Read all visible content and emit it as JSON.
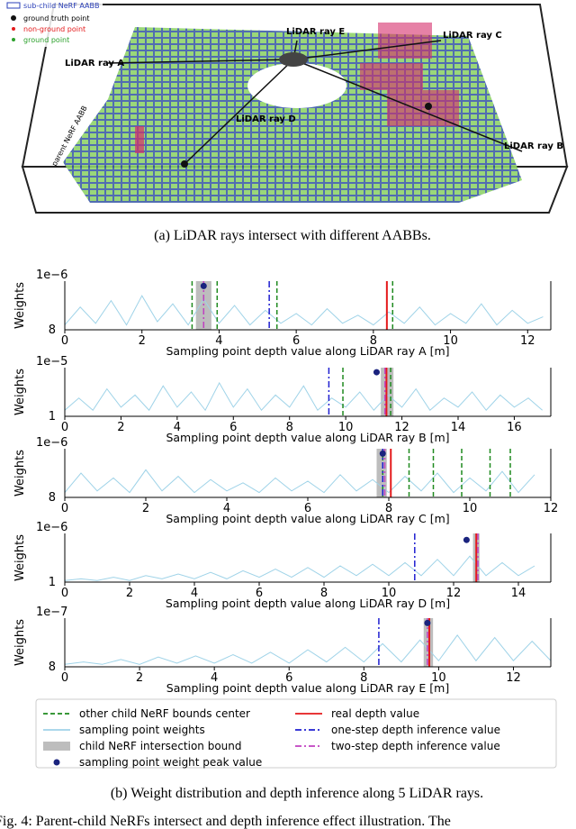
{
  "illustration": {
    "legend": [
      "sub-child NeRF AABB",
      "ground truth point",
      "non-ground point",
      "ground point"
    ],
    "ray_labels": [
      "LiDAR ray A",
      "LiDAR ray B",
      "LiDAR ray C",
      "LiDAR ray D",
      "LiDAR ray E"
    ],
    "parent_label": "parent NeRF AABB",
    "caption": "(a) LiDAR rays intersect with different AABBs."
  },
  "chart_data": [
    {
      "type": "line",
      "offset_label": "1e−6",
      "y_corner_label": "8",
      "ylabel": "Weights",
      "xlabel": "Sampling point depth value along LiDAR ray A [m]",
      "xlim": [
        0,
        12.6
      ],
      "xticks": [
        0,
        2,
        4,
        6,
        8,
        10,
        12
      ],
      "ylim": [
        0,
        3
      ],
      "x": [
        0,
        0.4,
        0.8,
        1.2,
        1.6,
        2,
        2.4,
        2.8,
        3.2,
        3.6,
        4,
        4.4,
        4.8,
        5.2,
        5.6,
        6,
        6.4,
        6.8,
        7.2,
        7.6,
        8,
        8.4,
        8.8,
        9.2,
        9.6,
        10,
        10.4,
        10.8,
        11.2,
        11.6,
        12,
        12.4
      ],
      "series": [
        {
          "color": "#9fd3e8",
          "values": [
            0.3,
            1.4,
            0.4,
            1.8,
            0.3,
            2.1,
            0.5,
            1.6,
            0.3,
            1.9,
            0.4,
            1.5,
            0.3,
            1.2,
            0.4,
            1.0,
            0.3,
            1.3,
            0.4,
            0.9,
            0.3,
            1.1,
            0.4,
            1.4,
            0.3,
            1.0,
            0.4,
            1.6,
            0.3,
            1.2,
            0.4,
            0.8
          ]
        }
      ],
      "bound": [
        3.4,
        3.8
      ],
      "centers": [
        3.3,
        3.95,
        5.5,
        8.5
      ],
      "real_depth": 8.35,
      "one_step": 5.3,
      "two_step": 3.6,
      "peak": [
        3.6,
        2.7
      ]
    },
    {
      "type": "line",
      "offset_label": "1e−5",
      "y_corner_label": "1",
      "ylabel": "Weights",
      "xlabel": "Sampling point depth value along LiDAR ray B [m]",
      "xlim": [
        0,
        17.3
      ],
      "xticks": [
        0,
        2,
        4,
        6,
        8,
        10,
        12,
        14,
        16
      ],
      "ylim": [
        0,
        1.6
      ],
      "x": [
        0,
        0.5,
        1,
        1.5,
        2,
        2.5,
        3,
        3.5,
        4,
        4.5,
        5,
        5.5,
        6,
        6.5,
        7,
        7.5,
        8,
        8.5,
        9,
        9.5,
        10,
        10.5,
        11,
        11.5,
        12,
        12.5,
        13,
        13.5,
        14,
        14.5,
        15,
        15.5,
        16,
        16.5,
        17
      ],
      "series": [
        {
          "color": "#9fd3e8",
          "values": [
            0.2,
            0.6,
            0.2,
            0.9,
            0.3,
            0.7,
            0.2,
            1.0,
            0.3,
            0.8,
            0.2,
            1.1,
            0.3,
            0.9,
            0.2,
            0.7,
            0.3,
            1.0,
            0.2,
            0.6,
            0.3,
            0.8,
            0.2,
            0.7,
            0.3,
            0.9,
            0.2,
            0.6,
            0.3,
            0.8,
            0.2,
            0.7,
            0.3,
            0.6,
            0.2
          ]
        }
      ],
      "bound": [
        11.25,
        11.7
      ],
      "centers": [
        9.9,
        11.6
      ],
      "real_depth": 11.45,
      "one_step": 9.4,
      "two_step": 11.4,
      "peak": [
        11.1,
        1.45
      ]
    },
    {
      "type": "line",
      "offset_label": "1e−6",
      "y_corner_label": "8",
      "ylabel": "Weights",
      "xlabel": "Sampling point depth value along LiDAR ray C [m]",
      "xlim": [
        0,
        12
      ],
      "xticks": [
        0,
        2,
        4,
        6,
        8,
        10,
        12
      ],
      "ylim": [
        0,
        3
      ],
      "x": [
        0,
        0.4,
        0.8,
        1.2,
        1.6,
        2,
        2.4,
        2.8,
        3.2,
        3.6,
        4,
        4.4,
        4.8,
        5.2,
        5.6,
        6,
        6.4,
        6.8,
        7.2,
        7.6,
        8,
        8.4,
        8.8,
        9.2,
        9.6,
        10,
        10.4,
        10.8,
        11.2,
        11.6
      ],
      "series": [
        {
          "color": "#9fd3e8",
          "values": [
            0.3,
            1.5,
            0.4,
            1.2,
            0.3,
            1.7,
            0.4,
            1.3,
            0.3,
            1.1,
            0.4,
            0.9,
            0.3,
            1.2,
            0.4,
            1.0,
            0.3,
            1.4,
            0.4,
            1.1,
            0.3,
            1.3,
            0.4,
            1.5,
            0.3,
            1.2,
            0.4,
            1.6,
            0.3,
            1.4
          ]
        }
      ],
      "bound": [
        7.7,
        7.95
      ],
      "centers": [
        7.85,
        8.5,
        9.1,
        9.8,
        10.5,
        11.0
      ],
      "real_depth": 8.05,
      "one_step": 7.85,
      "two_step": 7.9,
      "peak": [
        7.85,
        2.7
      ]
    },
    {
      "type": "line",
      "offset_label": "1e−6",
      "y_corner_label": "1",
      "ylabel": "Weights",
      "xlabel": "Sampling point depth value along LiDAR ray D [m]",
      "xlim": [
        0,
        15
      ],
      "xticks": [
        0,
        2,
        4,
        6,
        8,
        10,
        12,
        14
      ],
      "ylim": [
        0,
        1.5
      ],
      "x": [
        0,
        0.5,
        1,
        1.5,
        2,
        2.5,
        3,
        3.5,
        4,
        4.5,
        5,
        5.5,
        6,
        6.5,
        7,
        7.5,
        8,
        8.5,
        9,
        9.5,
        10,
        10.5,
        11,
        11.5,
        12,
        12.5,
        13,
        13.5,
        14,
        14.5
      ],
      "series": [
        {
          "color": "#9fd3e8",
          "values": [
            0.05,
            0.1,
            0.05,
            0.15,
            0.05,
            0.2,
            0.1,
            0.25,
            0.1,
            0.3,
            0.1,
            0.35,
            0.15,
            0.4,
            0.15,
            0.45,
            0.15,
            0.5,
            0.2,
            0.55,
            0.2,
            0.6,
            0.2,
            0.7,
            0.2,
            0.8,
            0.2,
            0.6,
            0.2,
            0.5
          ]
        }
      ],
      "bound": [
        12.6,
        12.8
      ],
      "centers": [],
      "real_depth": 12.7,
      "one_step": 10.8,
      "two_step": 12.75,
      "peak": [
        12.4,
        1.3
      ]
    },
    {
      "type": "line",
      "offset_label": "1e−7",
      "y_corner_label": "8",
      "ylabel": "Weights",
      "xlabel": "Sampling point depth value along LiDAR ray E [m]",
      "xlim": [
        0,
        13
      ],
      "xticks": [
        0,
        2,
        4,
        6,
        8,
        10,
        12
      ],
      "ylim": [
        0,
        4
      ],
      "x": [
        0,
        0.5,
        1,
        1.5,
        2,
        2.5,
        3,
        3.5,
        4,
        4.5,
        5,
        5.5,
        6,
        6.5,
        7,
        7.5,
        8,
        8.5,
        9,
        9.5,
        10,
        10.5,
        11,
        11.5,
        12,
        12.5,
        13
      ],
      "series": [
        {
          "color": "#9fd3e8",
          "values": [
            0.2,
            0.4,
            0.2,
            0.6,
            0.2,
            0.8,
            0.3,
            0.9,
            0.3,
            1.0,
            0.3,
            1.2,
            0.3,
            1.4,
            0.4,
            1.6,
            0.4,
            1.9,
            0.4,
            2.2,
            0.5,
            2.6,
            0.5,
            2.4,
            0.5,
            2.1,
            0.5
          ]
        }
      ],
      "bound": [
        9.6,
        9.85
      ],
      "centers": [],
      "real_depth": 9.75,
      "one_step": 8.4,
      "two_step": 9.7,
      "peak": [
        9.7,
        3.6
      ]
    }
  ],
  "legend": [
    {
      "label": "other child NeRF bounds  center",
      "color": "#1f8a1f",
      "style": "dashed"
    },
    {
      "label": "sampling point weights",
      "color": "#9fd3e8",
      "style": "solid"
    },
    {
      "label": "child NeRF intersection bound",
      "color": "#bdbdbd",
      "style": "band"
    },
    {
      "label": "sampling point weight peak value",
      "color": "#1a237e",
      "style": "dot"
    },
    {
      "label": "real depth value",
      "color": "#e41a1c",
      "style": "solid"
    },
    {
      "label": "one-step depth inference value",
      "color": "#1f1fd0",
      "style": "dashdot"
    },
    {
      "label": "two-step depth inference value",
      "color": "#c040c0",
      "style": "dashdot"
    }
  ],
  "caption_b": "(b) Weight distribution and depth inference along 5 LiDAR rays.",
  "fig_text": "Fig. 4:  Parent-child NeRFs intersect and depth inference effect illustration. The"
}
